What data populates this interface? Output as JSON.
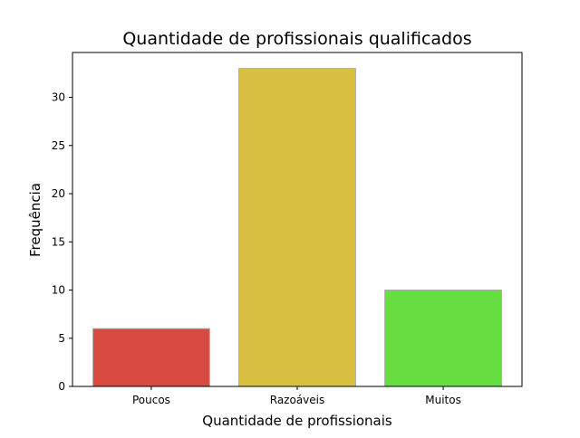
{
  "chart_data": {
    "type": "bar",
    "title": "Quantidade de profissionais qualificados",
    "xlabel": "Quantidade de profissionais",
    "ylabel": "Frequência",
    "categories": [
      "Poucos",
      "Razoáveis",
      "Muitos"
    ],
    "values": [
      6,
      33,
      10
    ],
    "colors": [
      "#d84a3f",
      "#d9c040",
      "#66dd40"
    ],
    "edge_color": "#aaaaaa",
    "ylim": [
      0,
      34.65
    ],
    "yticks": [
      0,
      5,
      10,
      15,
      20,
      25,
      30
    ],
    "grid": false,
    "legend": null
  }
}
